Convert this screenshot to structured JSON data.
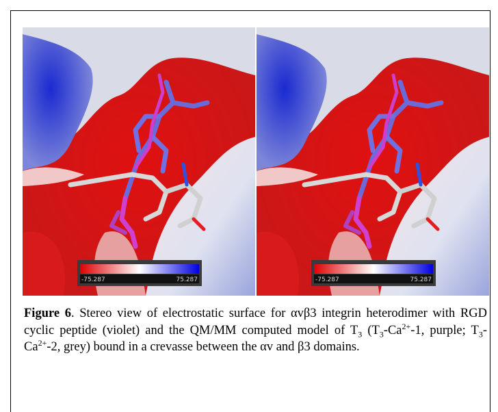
{
  "panels": [
    {
      "colorbar": {
        "min": "-75.287",
        "max": "75.287"
      }
    },
    {
      "colorbar": {
        "min": "-75.287",
        "max": "75.287"
      }
    }
  ],
  "caption": {
    "label": "Figure 6",
    "parts": [
      ". Stereo view of electrostatic surface for αvβ3 integrin heterodimer with RGD cyclic peptide (violet) and the QM/MM computed model of T",
      "3",
      " (T",
      "3",
      "-Ca",
      "2+",
      "-1, purple; T",
      "3",
      "-Ca",
      "2+",
      "-2, grey) bound in a crevasse between the αv and β3 domains."
    ]
  }
}
